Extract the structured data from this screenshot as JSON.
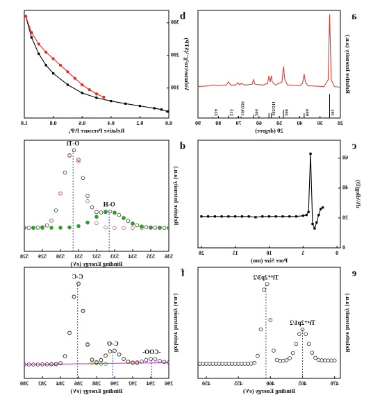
{
  "chart_data": [
    {
      "type": "line",
      "panel_label": "a",
      "xlabel": "2θ (degree)",
      "ylabel": "Relative Intensity (a.u.)",
      "xlim": [
        20,
        90
      ],
      "ylim": [
        -35,
        105
      ],
      "y2lim": [
        0,
        450
      ],
      "xticks": [
        20,
        30,
        40,
        50,
        60,
        70,
        80,
        90
      ],
      "series": [
        {
          "color": "#e03a2f",
          "mode": "line",
          "x": [
            20,
            23,
            24.5,
            25.3,
            26,
            28,
            36,
            37.2,
            37.8,
            38.6,
            40,
            46,
            47.3,
            48,
            48.7,
            52,
            53.5,
            53.9,
            54.5,
            55.1,
            55.8,
            58,
            62,
            62.7,
            63.4,
            67,
            68.8,
            69.5,
            70.3,
            71.5,
            74,
            75,
            76,
            80,
            82.7,
            84,
            90
          ],
          "values": [
            5,
            6,
            15,
            100,
            15,
            6,
            7,
            12,
            22,
            10,
            7,
            8,
            15,
            32,
            12,
            8,
            12,
            20,
            12,
            20,
            10,
            8,
            9,
            15,
            9,
            8,
            10,
            8,
            11,
            8,
            8,
            12,
            8,
            7,
            8,
            7,
            6
          ]
        },
        {
          "color": "#000000",
          "mode": "sticks",
          "axis": "y2",
          "x": [
            25.3,
            37.8,
            48.0,
            53.9,
            55.1,
            62.7,
            68.8,
            70.3,
            75.0,
            82.7
          ],
          "values": [
            100,
            20,
            35,
            20,
            20,
            14,
            6,
            6,
            10,
            4
          ]
        }
      ],
      "peaks": [
        {
          "label": "101",
          "x": 25.3
        },
        {
          "label": "004",
          "x": 37.8
        },
        {
          "label": "200",
          "x": 48.0
        },
        {
          "label": "105/211",
          "x": 54.4
        },
        {
          "label": "204",
          "x": 62.7
        },
        {
          "label": "116/220",
          "x": 69.5
        },
        {
          "label": "215",
          "x": 75.0
        },
        {
          "label": "224",
          "x": 82.7
        }
      ]
    },
    {
      "type": "line",
      "panel_label": "b",
      "xlabel": "Relative Pressure P/P₀",
      "ylabel": "Volume/cm³g⁻¹(STP)",
      "xlim": [
        0,
        1
      ],
      "ylim": [
        8,
        338
      ],
      "xticks": [
        {
          "value": 0,
          "label": "0.0"
        },
        {
          "value": 0.2,
          "label": "0.2"
        },
        {
          "value": 0.4,
          "label": "0.4"
        },
        {
          "value": 0.6,
          "label": "0.6"
        },
        {
          "value": 0.8,
          "label": "0.8"
        },
        {
          "value": 1,
          "label": "1.0"
        }
      ],
      "yticks": [
        100,
        200,
        300
      ],
      "series": [
        {
          "color": "#000000",
          "mode": "line-markers",
          "marker": "square",
          "x": [
            0.01,
            0.05,
            0.1,
            0.2,
            0.3,
            0.4,
            0.5,
            0.6,
            0.7,
            0.8,
            0.85,
            0.9,
            0.95,
            0.99
          ],
          "values": [
            28,
            34,
            38,
            45,
            52,
            60,
            70,
            85,
            110,
            145,
            170,
            205,
            255,
            320
          ]
        },
        {
          "color": "#e8281e",
          "mode": "line-markers",
          "marker": "circle",
          "x": [
            0.99,
            0.95,
            0.9,
            0.85,
            0.8,
            0.75,
            0.7,
            0.65,
            0.6,
            0.55,
            0.5,
            0.45
          ],
          "values": [
            320,
            270,
            235,
            210,
            190,
            170,
            150,
            130,
            110,
            95,
            82,
            72
          ]
        }
      ]
    },
    {
      "type": "line",
      "panel_label": "c",
      "xlabel": "Pore Size (nm)",
      "ylabel": "dV/dlog(D)",
      "xlim": [
        -0.5,
        20.5
      ],
      "ylim": [
        0,
        72
      ],
      "xticks": [
        0,
        5,
        10,
        15,
        20
      ],
      "yticks": [
        0,
        20,
        40,
        60
      ],
      "series": [
        {
          "color": "#000000",
          "mode": "line-markers",
          "marker": "square",
          "x": [
            20,
            19,
            18,
            17,
            16,
            15,
            14,
            13,
            12,
            11,
            10,
            9,
            8,
            7,
            6,
            5,
            4.5,
            4.2,
            3.9,
            3.6,
            3.3,
            3.0,
            2.7,
            2.4,
            2.1
          ],
          "values": [
            21,
            21,
            21,
            21,
            21,
            21,
            21,
            21,
            20.5,
            21,
            21,
            21,
            21,
            21,
            21,
            21.5,
            22,
            24,
            63,
            16,
            13,
            17,
            22,
            26,
            27
          ]
        }
      ]
    },
    {
      "type": "scatter",
      "panel_label": "d",
      "xlabel": "Binding Energy (eV)",
      "ylabel": "Relative Intensity (a.u.)",
      "xlim": [
        536,
        528
      ],
      "ylim": [
        -25,
        112
      ],
      "xticks": [
        528,
        529,
        530,
        531,
        532,
        533,
        534,
        535,
        536
      ],
      "series": [
        {
          "color": "#333333",
          "mode": "markers",
          "marker": "circle",
          "open": true,
          "x": [
            528,
            528.25,
            528.5,
            528.75,
            529,
            529.25,
            529.5,
            529.75,
            530,
            530.25,
            530.5,
            530.75,
            531,
            531.25,
            531.5,
            531.75,
            532,
            532.25,
            532.5,
            532.75,
            533,
            533.25,
            533.5,
            533.75,
            534,
            534.25,
            534.5,
            534.75,
            535,
            535.25,
            535.5,
            535.75,
            536
          ],
          "values": [
            4,
            4,
            4,
            4.2,
            4.8,
            6.9,
            12.8,
            25.4,
            46.3,
            72.1,
            93.4,
            99.6,
            88,
            65.5,
            43.4,
            29.3,
            23.4,
            22.9,
            23.8,
            24.1,
            22.6,
            19.8,
            16.1,
            12.5,
            9.3,
            7.1,
            5.6,
            4.8,
            4.4,
            4.2,
            4.1,
            4,
            4
          ]
        },
        {
          "color": "#e05a5a",
          "mode": "markers",
          "marker": "circle",
          "open": true,
          "x": [
            528,
            528.5,
            529,
            529.5,
            530,
            530.5,
            531,
            531.5,
            532,
            532.5,
            533,
            533.5,
            534,
            534.5,
            535,
            535.5,
            536
          ],
          "values": [
            4,
            4,
            4.8,
            12.8,
            46.3,
            92.9,
            85.9,
            36.9,
            9.8,
            4.4,
            4,
            4,
            4,
            4,
            4,
            4,
            4
          ]
        },
        {
          "color": "#2ca02c",
          "mode": "markers",
          "marker": "circle",
          "open": false,
          "x": [
            528,
            528.5,
            529,
            529.5,
            530,
            530.5,
            531,
            531.5,
            532,
            532.5,
            533,
            533.5,
            534,
            534.5,
            535,
            535.5,
            536
          ],
          "values": [
            4,
            4,
            4,
            4,
            4.1,
            4.5,
            6.1,
            10.5,
            17.6,
            23.4,
            22.6,
            16.1,
            9.3,
            5.6,
            4.4,
            4.1,
            4
          ]
        }
      ],
      "peaks": [
        {
          "label": "O-Ti",
          "x": 530.7
        },
        {
          "label": "O-H",
          "x": 532.7
        }
      ]
    },
    {
      "type": "scatter",
      "panel_label": "e",
      "xlabel": "Binding Energy (eV)",
      "ylabel": "Relative Intensity (a.u.)",
      "xlim": [
        470.9,
        448.7
      ],
      "ylim": [
        -10,
        112
      ],
      "xticks": [
        450,
        455,
        460,
        465,
        470
      ],
      "series": [
        {
          "color": "#222222",
          "mode": "markers",
          "marker": "circle",
          "open": true,
          "x": [
            449,
            449.5,
            450,
            450.5,
            451,
            451.5,
            452,
            452.5,
            453,
            453.5,
            454,
            454.5,
            455,
            455.5,
            456,
            456.5,
            457,
            457.5,
            458,
            458.5,
            459,
            459.5,
            460,
            460.5,
            461,
            461.5,
            462,
            462.5,
            463,
            463.5,
            464,
            464.5,
            465,
            465.5,
            466,
            466.5,
            467,
            467.5,
            468,
            468.5,
            469,
            469.5,
            470
          ],
          "values": [
            6,
            6,
            6,
            6,
            6,
            6,
            6,
            6,
            6,
            6,
            6,
            6,
            6,
            6,
            6,
            6,
            6.1,
            7,
            14.8,
            43.8,
            87.5,
            93.5,
            54,
            20.5,
            10.2,
            9.2,
            9.3,
            9.9,
            12.1,
            17.8,
            27.8,
            38.7,
            43.6,
            38.7,
            27.9,
            18.1,
            12.5,
            10.3,
            9.8,
            9.7,
            9.6,
            9.6,
            9.6
          ]
        }
      ],
      "peaks": [
        {
          "label": "Ti⁴⁺2p3/2",
          "x": 459.3
        },
        {
          "label": "Ti⁴⁺2p1/2",
          "x": 465
        }
      ]
    },
    {
      "type": "scatter",
      "panel_label": "f",
      "xlabel": "Binding Energy (eV)",
      "ylabel": "Relative Intensity (a.u.)",
      "xlim": [
        296,
        280
      ],
      "ylim": [
        -5,
        115
      ],
      "xticks": [
        280,
        282,
        284,
        286,
        288,
        290,
        292,
        294,
        296
      ],
      "series": [
        {
          "color": "#e040e0",
          "mode": "line",
          "x": [
            280,
            296
          ],
          "values": [
            10,
            12
          ]
        },
        {
          "color": "#2ca02c",
          "mode": "markers",
          "marker": "circle",
          "open": true,
          "x": [
            283,
            283.5,
            284,
            284.5,
            285,
            285.5,
            286,
            286.5,
            287,
            287.5,
            288,
            288.5,
            289
          ],
          "values": [
            10.2,
            10.4,
            11.3,
            18.9,
            44,
            83,
            97,
            67.6,
            31.2,
            14.9,
            11.3,
            10.8,
            10.7
          ]
        },
        {
          "color": "#e08a1e",
          "mode": "markers",
          "marker": "circle",
          "open": true,
          "x": [
            287.5,
            288,
            288.5,
            289,
            289.5,
            290,
            290.5,
            291,
            291.5,
            292,
            292.5
          ],
          "values": [
            11.4,
            12.3,
            14.9,
            19.6,
            24.1,
            24.7,
            20.7,
            15.7,
            12.8,
            11.7,
            11.6
          ]
        },
        {
          "color": "#222222",
          "mode": "markers",
          "marker": "circle",
          "open": true,
          "x": [
            280,
            280.5,
            281,
            281.5,
            282,
            282.5,
            283,
            283.5,
            284,
            284.5,
            285,
            285.5,
            286,
            286.5,
            287,
            287.5,
            288,
            288.5,
            289,
            289.5,
            290,
            290.5,
            291,
            291.5,
            292,
            292.5,
            293,
            293.5,
            294,
            294.5,
            295,
            295.5,
            296
          ],
          "values": [
            10,
            10,
            10,
            10,
            10.1,
            10.1,
            10.2,
            10.3,
            11.5,
            19,
            44.2,
            83.3,
            97.5,
            68.1,
            31.8,
            15.3,
            12.5,
            14.7,
            19.6,
            24.2,
            24.9,
            20.9,
            16,
            13.1,
            12.1,
            12.2,
            13.2,
            14.8,
            16,
            15.5,
            13.9,
            12.8,
            12.3
          ]
        }
      ],
      "peaks": [
        {
          "label": "C-C",
          "x": 285.9
        },
        {
          "label": "C-O",
          "x": 289.8
        },
        {
          "label": "-COO-",
          "x": 294.1
        }
      ]
    }
  ]
}
